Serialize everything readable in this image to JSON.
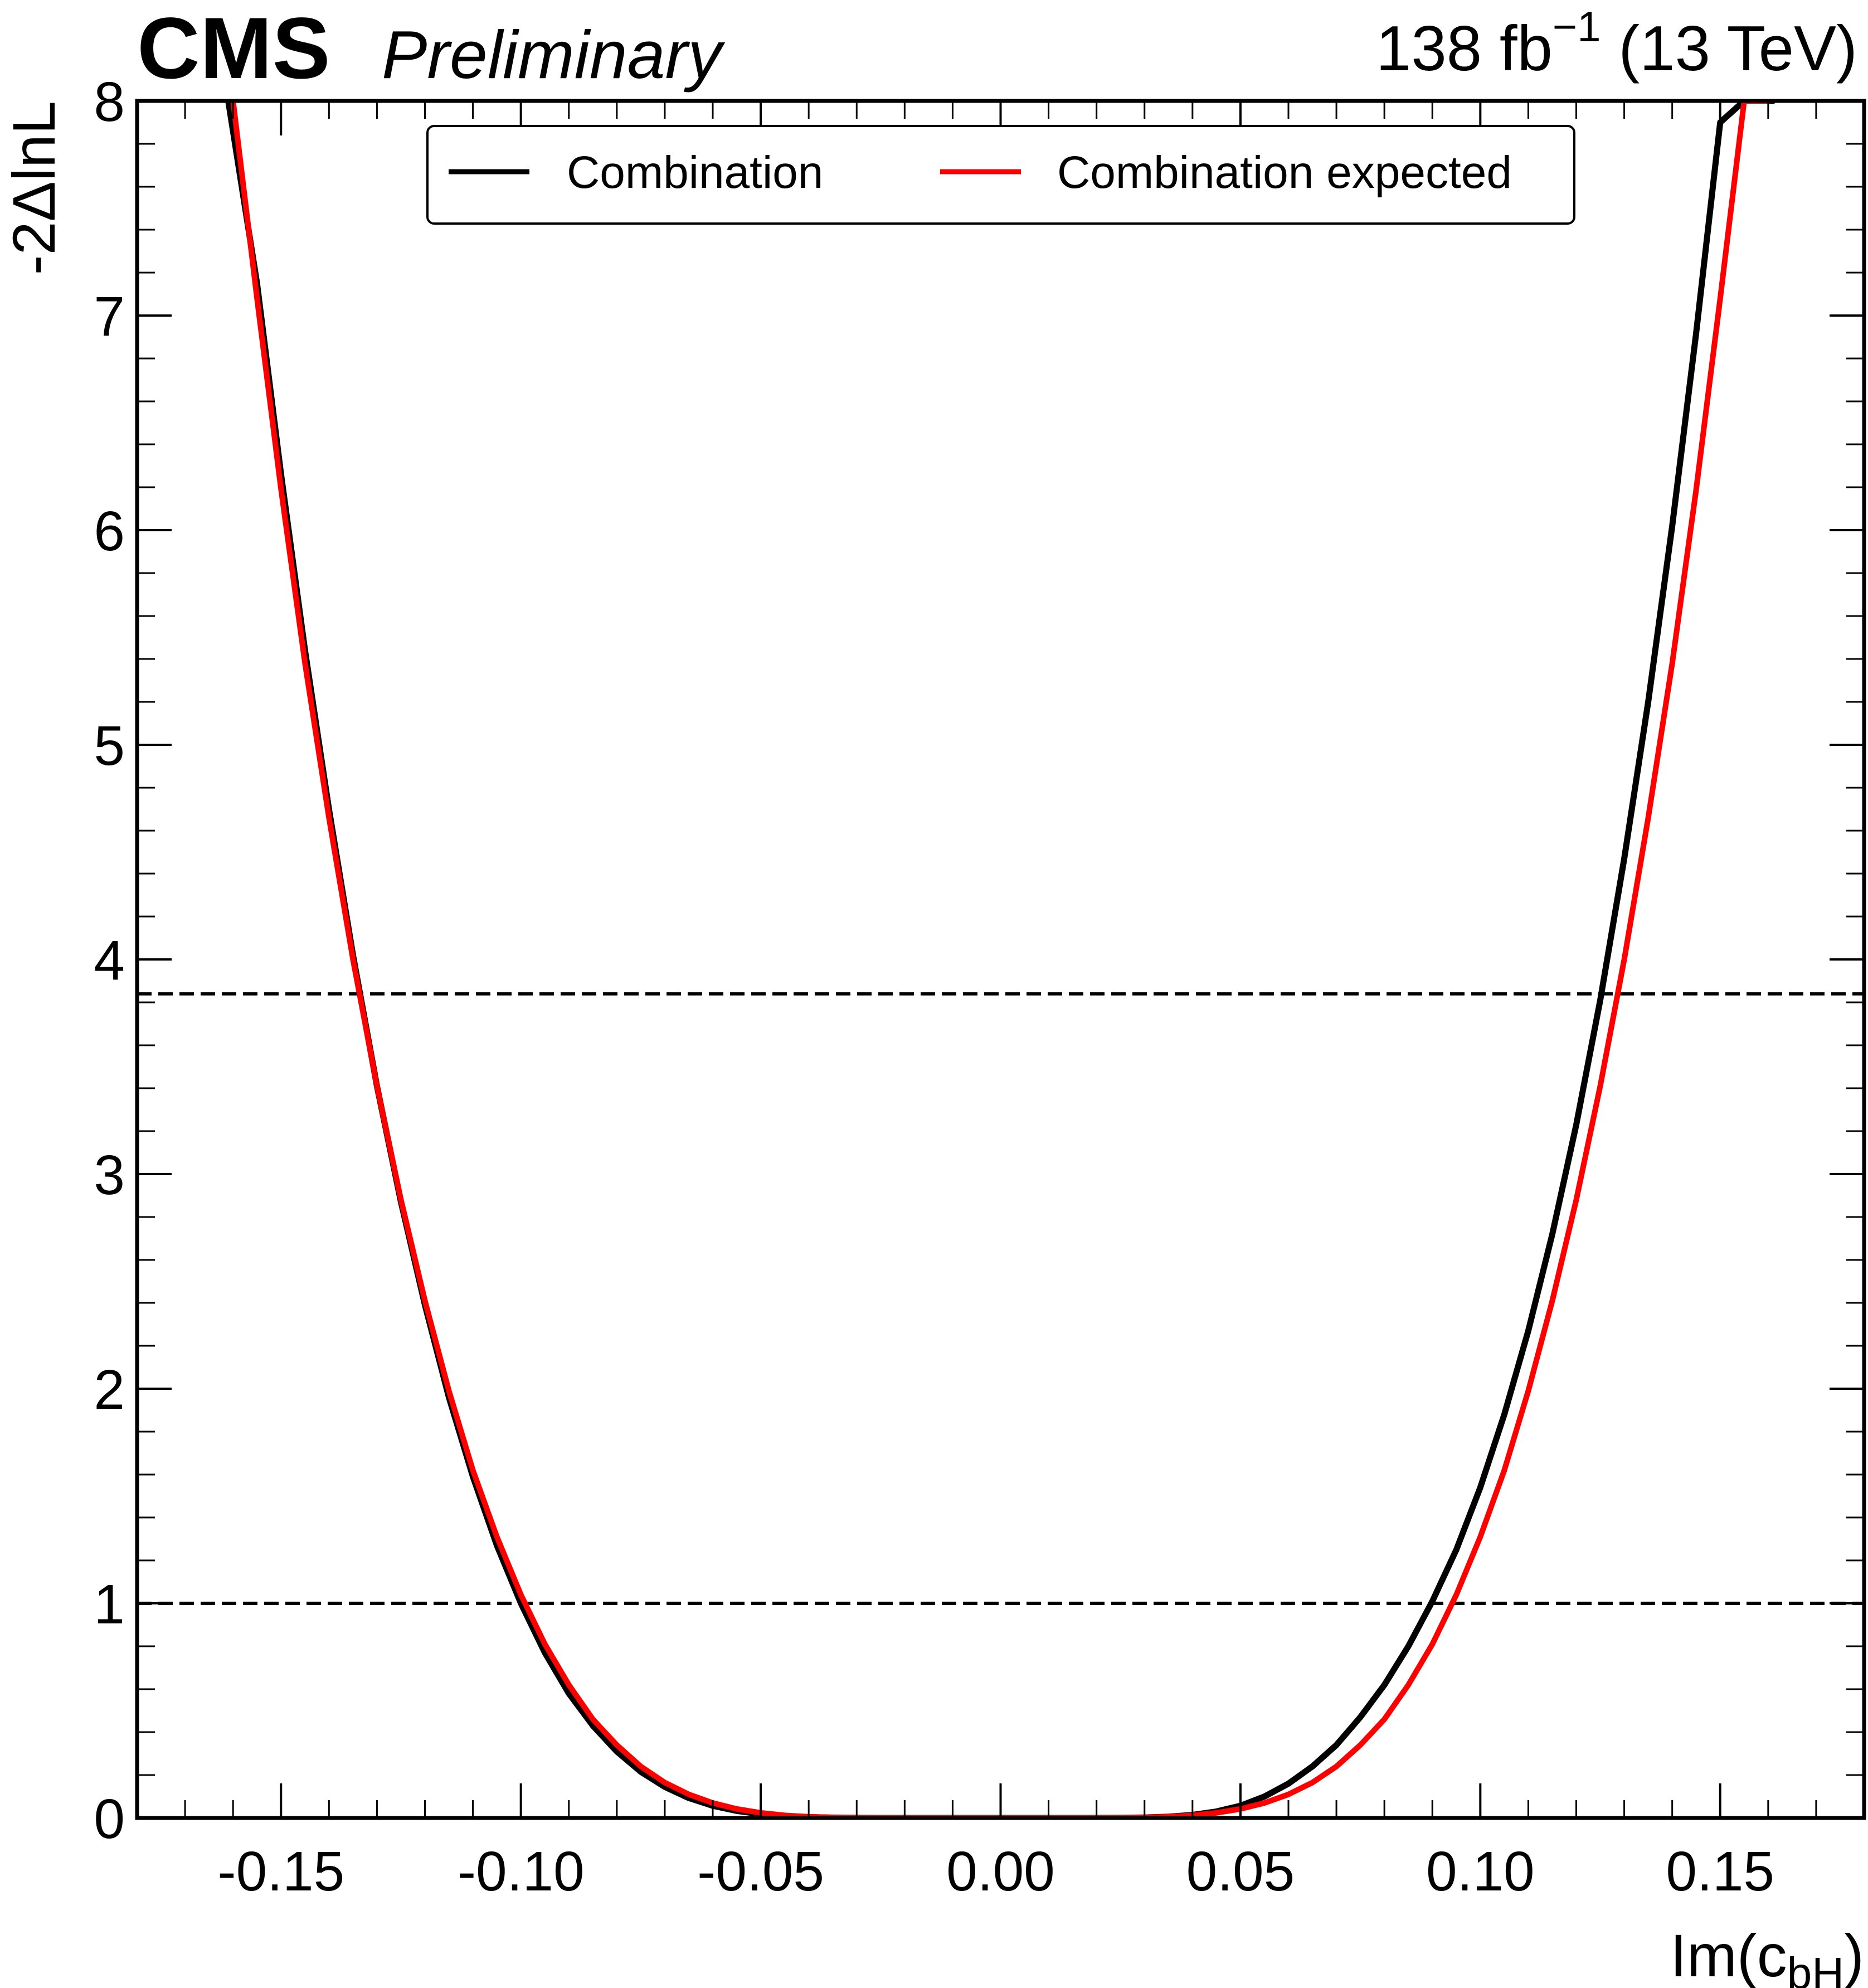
{
  "header": {
    "experiment": "CMS",
    "status": "Preliminary",
    "lumi_prefix": "138 fb",
    "lumi_exponent": "−1",
    "lumi_suffix": " (13 TeV)"
  },
  "chart_data": {
    "type": "line",
    "xlabel_main": "Im(c",
    "xlabel_sub": "bH",
    "xlabel_close": ")",
    "ylabel": "-2ΔlnL",
    "xlim": [
      -0.18,
      0.18
    ],
    "ylim": [
      0,
      8
    ],
    "x_ticks": [
      -0.15,
      -0.1,
      -0.05,
      0.0,
      0.05,
      0.1,
      0.15
    ],
    "x_tick_labels": [
      "-0.15",
      "-0.10",
      "-0.05",
      "0.00",
      "0.05",
      "0.10",
      "0.15"
    ],
    "y_ticks": [
      0,
      1,
      2,
      3,
      4,
      5,
      6,
      7,
      8
    ],
    "y_tick_labels": [
      "0",
      "1",
      "2",
      "3",
      "4",
      "5",
      "6",
      "7",
      "8"
    ],
    "reference_lines": [
      1.0,
      3.84
    ],
    "legend": {
      "placement": "top-center",
      "columns": 2
    },
    "series": [
      {
        "name": "Combination",
        "color": "#000000",
        "x": [
          -0.161,
          -0.155,
          -0.15,
          -0.145,
          -0.14,
          -0.135,
          -0.13,
          -0.125,
          -0.12,
          -0.115,
          -0.11,
          -0.105,
          -0.1,
          -0.095,
          -0.09,
          -0.085,
          -0.08,
          -0.075,
          -0.07,
          -0.065,
          -0.06,
          -0.055,
          -0.05,
          -0.045,
          -0.04,
          -0.035,
          -0.03,
          -0.025,
          -0.02,
          -0.015,
          -0.01,
          -0.005,
          0.0,
          0.005,
          0.01,
          0.015,
          0.02,
          0.025,
          0.03,
          0.035,
          0.04,
          0.045,
          0.05,
          0.055,
          0.06,
          0.065,
          0.07,
          0.075,
          0.08,
          0.085,
          0.09,
          0.095,
          0.1,
          0.105,
          0.11,
          0.115,
          0.12,
          0.125,
          0.13,
          0.135,
          0.14,
          0.145,
          0.15,
          0.155,
          0.161
        ],
        "y": [
          8.0,
          7.15,
          6.26,
          5.44,
          4.7,
          4.02,
          3.41,
          2.87,
          2.39,
          1.96,
          1.59,
          1.27,
          1.0,
          0.77,
          0.58,
          0.43,
          0.31,
          0.215,
          0.145,
          0.093,
          0.057,
          0.033,
          0.018,
          0.009,
          0.004,
          0.0015,
          0.0005,
          0.0001,
          0.0,
          0.0,
          0.0,
          0.0,
          0.0,
          0.0,
          0.0,
          0.0,
          0.0,
          0.0005,
          0.002,
          0.006,
          0.014,
          0.03,
          0.057,
          0.1,
          0.16,
          0.24,
          0.34,
          0.47,
          0.62,
          0.8,
          1.01,
          1.25,
          1.54,
          1.88,
          2.27,
          2.72,
          3.23,
          3.81,
          4.47,
          5.2,
          6.02,
          6.92,
          7.9,
          8.0,
          8.0
        ]
      },
      {
        "name": "Combination expected",
        "color": "#ff0000",
        "x": [
          -0.16,
          -0.155,
          -0.15,
          -0.145,
          -0.14,
          -0.135,
          -0.13,
          -0.125,
          -0.12,
          -0.115,
          -0.11,
          -0.105,
          -0.1,
          -0.095,
          -0.09,
          -0.085,
          -0.08,
          -0.075,
          -0.07,
          -0.065,
          -0.06,
          -0.055,
          -0.05,
          -0.045,
          -0.04,
          -0.035,
          -0.03,
          -0.025,
          -0.02,
          -0.015,
          -0.01,
          -0.005,
          0.0,
          0.005,
          0.01,
          0.015,
          0.02,
          0.025,
          0.03,
          0.035,
          0.04,
          0.045,
          0.05,
          0.055,
          0.06,
          0.065,
          0.07,
          0.075,
          0.08,
          0.085,
          0.09,
          0.095,
          0.1,
          0.105,
          0.11,
          0.115,
          0.12,
          0.125,
          0.13,
          0.135,
          0.14,
          0.145,
          0.15,
          0.155,
          0.16
        ],
        "y": [
          8.0,
          7.08,
          6.19,
          5.38,
          4.66,
          4.0,
          3.41,
          2.88,
          2.41,
          1.99,
          1.62,
          1.31,
          1.04,
          0.81,
          0.62,
          0.46,
          0.34,
          0.24,
          0.165,
          0.11,
          0.07,
          0.042,
          0.024,
          0.012,
          0.0055,
          0.0022,
          0.0007,
          0.0002,
          0.0,
          0.0,
          0.0,
          0.0,
          0.0,
          0.0,
          0.0,
          0.0,
          0.0001,
          0.0007,
          0.0022,
          0.0055,
          0.012,
          0.024,
          0.042,
          0.07,
          0.11,
          0.165,
          0.24,
          0.34,
          0.46,
          0.62,
          0.81,
          1.04,
          1.31,
          1.62,
          1.99,
          2.41,
          2.88,
          3.41,
          4.0,
          4.66,
          5.38,
          6.19,
          7.08,
          8.0,
          8.0
        ]
      }
    ]
  }
}
